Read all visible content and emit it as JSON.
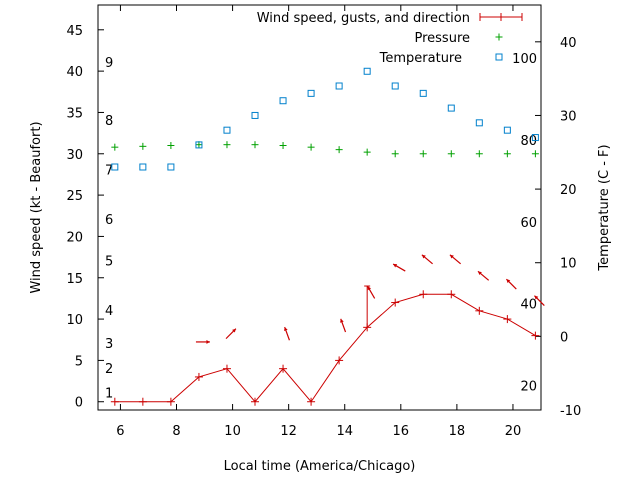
{
  "chart_data": {
    "type": "line",
    "xlabel": "Local time (America/Chicago)",
    "ylabel_left": "Wind speed (kt - Beaufort)",
    "ylabel_right": "Temperature (C - F)",
    "x_ticks": [
      "6",
      "8",
      "10",
      "12",
      "14",
      "16",
      "18",
      "20"
    ],
    "y_left_ticks": [
      "0",
      "5",
      "10",
      "15",
      "20",
      "25",
      "30",
      "35",
      "40",
      "45"
    ],
    "y_right_ticks": [
      "-10",
      "0",
      "10",
      "20",
      "30",
      "40"
    ],
    "beaufort_labels": [
      "1",
      "2",
      "3",
      "4",
      "5",
      "6",
      "7",
      "8",
      "9"
    ],
    "fahrenheit_labels": [
      "20",
      "40",
      "60",
      "80",
      "100"
    ],
    "xlim": [
      5.2,
      21.0
    ],
    "ylim_left": [
      -1,
      48
    ],
    "ylim_right": [
      -10,
      45
    ],
    "legend_position": "top-right",
    "series": [
      {
        "name": "Wind speed, gusts, and direction",
        "color": "#cc0000",
        "axis": "left",
        "x": [
          5.8,
          6.8,
          7.8,
          8.8,
          9.8,
          10.8,
          11.8,
          12.8,
          13.8,
          14.8,
          15.8,
          16.8,
          17.8,
          18.8,
          19.8,
          20.8
        ],
        "values": [
          0,
          0,
          0,
          3,
          4,
          0,
          4,
          0,
          5,
          9,
          12,
          13,
          13,
          11,
          10,
          8
        ],
        "gusts": [
          {
            "x": 14.8,
            "value": 14
          }
        ],
        "direction_deg": [
          null,
          null,
          null,
          270,
          225,
          null,
          160,
          null,
          160,
          150,
          120,
          130,
          130,
          130,
          135,
          135
        ]
      },
      {
        "name": "Pressure",
        "color": "#00a000",
        "axis": "left",
        "x": [
          5.8,
          6.8,
          7.8,
          8.8,
          9.8,
          10.8,
          11.8,
          12.8,
          13.8,
          14.8,
          15.8,
          16.8,
          17.8,
          18.8,
          19.8,
          20.8
        ],
        "values": [
          30.8,
          30.9,
          31.0,
          31.1,
          31.1,
          31.1,
          31.0,
          30.8,
          30.5,
          30.2,
          30.0,
          30.0,
          30.0,
          30.0,
          30.0,
          30.0
        ]
      },
      {
        "name": "Temperature",
        "color": "#0080cc",
        "axis": "right",
        "x": [
          5.8,
          6.8,
          7.8,
          8.8,
          9.8,
          10.8,
          11.8,
          12.8,
          13.8,
          14.8,
          15.8,
          16.8,
          17.8,
          18.8,
          19.8,
          20.8
        ],
        "values": [
          23,
          23,
          23,
          26,
          28,
          30,
          32,
          33,
          34,
          36,
          34,
          33,
          31,
          29,
          28,
          27
        ]
      }
    ]
  }
}
